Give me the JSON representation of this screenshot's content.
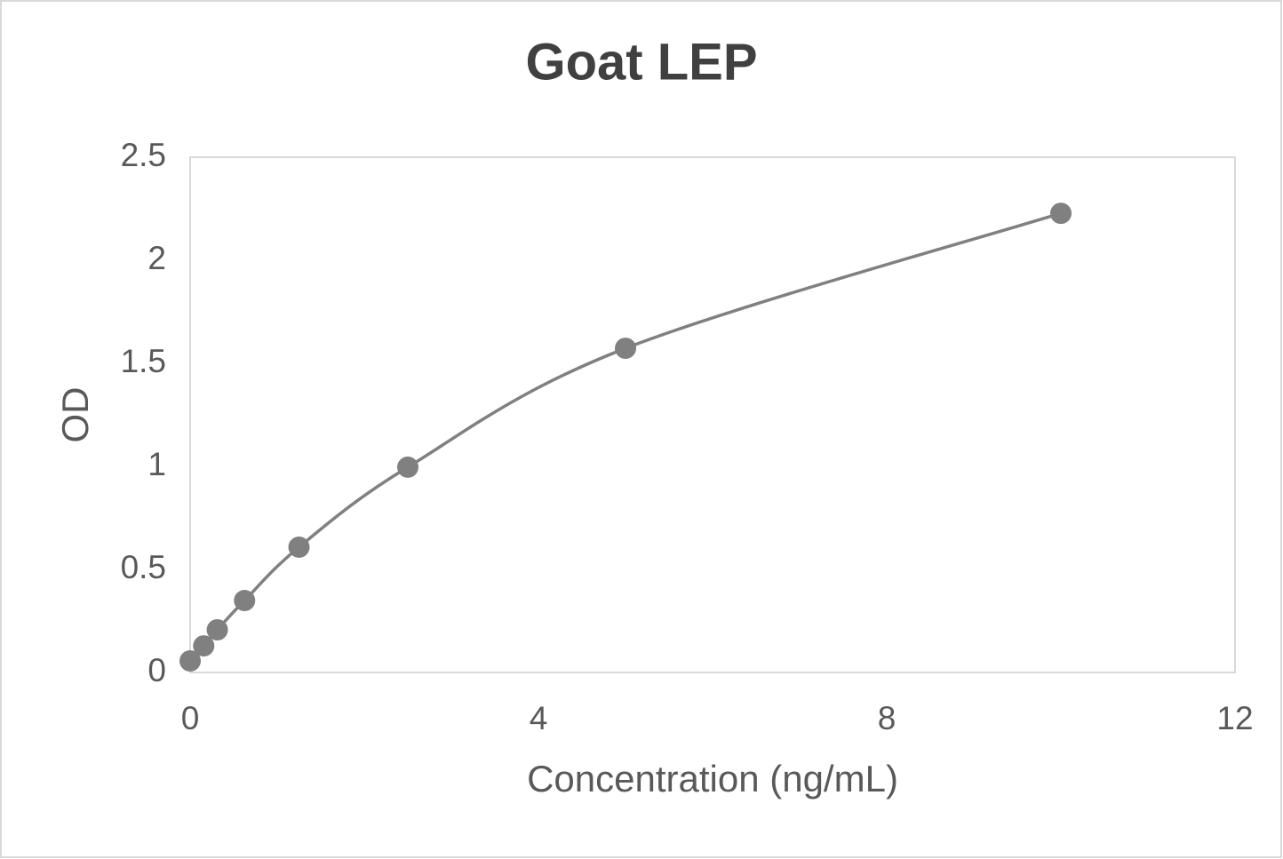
{
  "chart_data": {
    "type": "scatter",
    "title": "Goat LEP",
    "x_label": "Concentration (ng/mL)",
    "y_label": "OD",
    "series": [
      {
        "name": "OD",
        "color": "#808080",
        "smooth": true,
        "x": [
          0,
          0.156,
          0.312,
          0.625,
          1.25,
          2.5,
          5,
          10
        ],
        "values": [
          0.056,
          0.129,
          0.207,
          0.349,
          0.608,
          0.996,
          1.573,
          2.228
        ]
      }
    ],
    "xlim": [
      0,
      12
    ],
    "xticks": [
      0,
      4,
      8,
      12
    ],
    "ylim": [
      0,
      2.5
    ],
    "yticks": [
      0,
      0.5,
      1,
      1.5,
      2,
      2.5
    ],
    "grid": false
  }
}
